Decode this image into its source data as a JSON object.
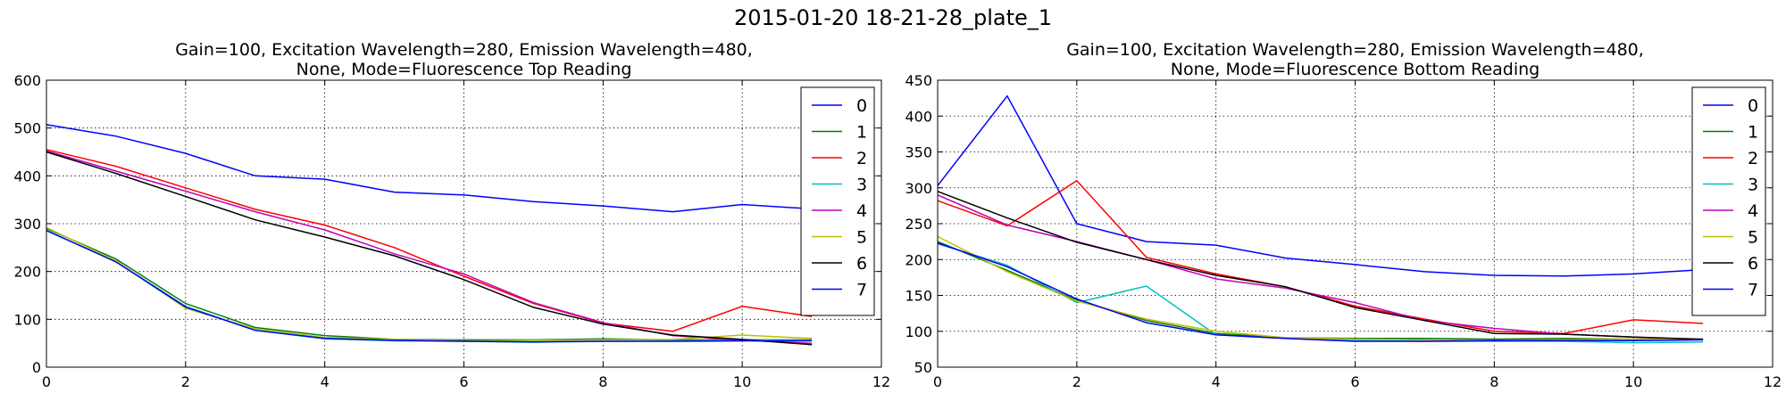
{
  "figure": {
    "suptitle": "2015-01-20 18-21-28_plate_1"
  },
  "series_colors": {
    "0": "#0000ff",
    "1": "#008000",
    "2": "#ff0000",
    "3": "#00bfbf",
    "4": "#bf00bf",
    "5": "#bfbf00",
    "6": "#000000",
    "7": "#0000ff"
  },
  "chart_data": [
    {
      "type": "line",
      "title": [
        "Gain=100, Excitation Wavelength=280, Emission Wavelength=480,",
        "None, Mode=Fluorescence Top Reading"
      ],
      "xlabel": "",
      "ylabel": "",
      "xlim": [
        0,
        12
      ],
      "ylim": [
        0,
        600
      ],
      "xticks": [
        0,
        2,
        4,
        6,
        8,
        10,
        12
      ],
      "yticks": [
        0,
        100,
        200,
        300,
        400,
        500,
        600
      ],
      "grid": true,
      "legend": "top-right",
      "x": [
        0,
        1,
        2,
        3,
        4,
        5,
        6,
        7,
        8,
        9,
        10,
        11
      ],
      "series": [
        {
          "name": "0",
          "values": [
            507,
            483,
            447,
            400,
            393,
            366,
            360,
            346,
            337,
            325,
            340,
            331
          ]
        },
        {
          "name": "1",
          "values": [
            290,
            226,
            133,
            83,
            66,
            58,
            57,
            57,
            59,
            57,
            57,
            57
          ]
        },
        {
          "name": "2",
          "values": [
            455,
            420,
            375,
            330,
            297,
            250,
            190,
            133,
            92,
            75,
            127,
            106
          ]
        },
        {
          "name": "3",
          "values": [
            285,
            221,
            127,
            77,
            59,
            55,
            54,
            52,
            54,
            55,
            56,
            56
          ]
        },
        {
          "name": "4",
          "values": [
            452,
            410,
            368,
            325,
            287,
            237,
            195,
            135,
            93,
            66,
            56,
            50
          ]
        },
        {
          "name": "5",
          "values": [
            292,
            222,
            123,
            80,
            62,
            58,
            55,
            56,
            57,
            58,
            67,
            60
          ]
        },
        {
          "name": "6",
          "values": [
            450,
            405,
            357,
            308,
            272,
            233,
            183,
            125,
            90,
            67,
            58,
            47
          ]
        },
        {
          "name": "7",
          "values": [
            286,
            220,
            126,
            77,
            60,
            56,
            54,
            53,
            54,
            54,
            55,
            55
          ]
        }
      ]
    },
    {
      "type": "line",
      "title": [
        "Gain=100, Excitation Wavelength=280, Emission Wavelength=480,",
        "None, Mode=Fluorescence Bottom Reading"
      ],
      "xlabel": "",
      "ylabel": "",
      "xlim": [
        0,
        12
      ],
      "ylim": [
        50,
        450
      ],
      "xticks": [
        0,
        2,
        4,
        6,
        8,
        10,
        12
      ],
      "yticks": [
        50,
        100,
        150,
        200,
        250,
        300,
        350,
        400,
        450
      ],
      "grid": true,
      "legend": "top-right",
      "x": [
        0,
        1,
        2,
        3,
        4,
        5,
        6,
        7,
        8,
        9,
        10,
        11
      ],
      "series": [
        {
          "name": "0",
          "values": [
            303,
            428,
            250,
            225,
            220,
            202,
            193,
            183,
            178,
            177,
            180,
            186
          ]
        },
        {
          "name": "1",
          "values": [
            225,
            185,
            143,
            115,
            97,
            91,
            90,
            90,
            89,
            90,
            89,
            89
          ]
        },
        {
          "name": "2",
          "values": [
            282,
            247,
            310,
            203,
            180,
            162,
            135,
            117,
            100,
            97,
            116,
            111
          ]
        },
        {
          "name": "3",
          "values": [
            222,
            192,
            140,
            163,
            95,
            90,
            87,
            86,
            86,
            86,
            84,
            85
          ]
        },
        {
          "name": "4",
          "values": [
            290,
            248,
            225,
            200,
            173,
            160,
            140,
            115,
            104,
            96,
            92,
            88
          ]
        },
        {
          "name": "5",
          "values": [
            232,
            183,
            142,
            117,
            100,
            91,
            89,
            88,
            87,
            88,
            89,
            89
          ]
        },
        {
          "name": "6",
          "values": [
            295,
            258,
            224,
            200,
            178,
            162,
            133,
            115,
            97,
            96,
            92,
            89
          ]
        },
        {
          "name": "7",
          "values": [
            223,
            190,
            145,
            112,
            95,
            90,
            86,
            86,
            87,
            87,
            87,
            88
          ]
        }
      ]
    }
  ]
}
